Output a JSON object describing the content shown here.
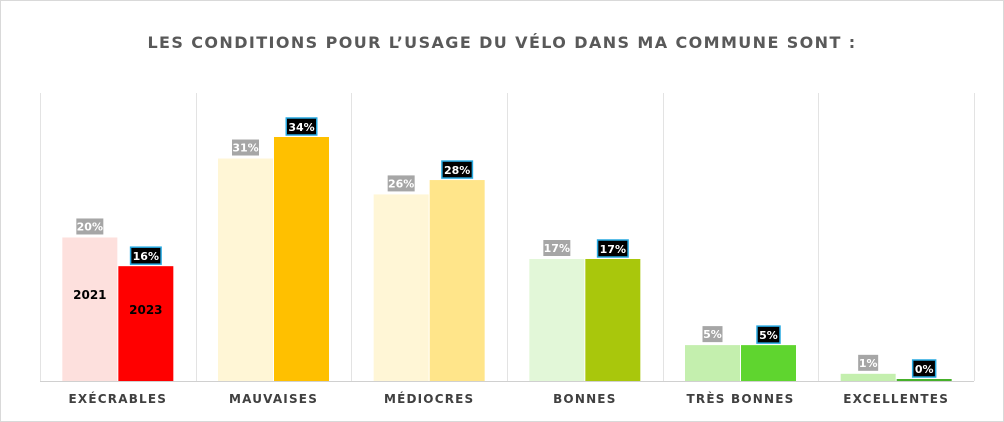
{
  "chart_data": {
    "type": "bar",
    "title": "LES CONDITIONS POUR L’USAGE DU VÉLO DANS MA COMMUNE SONT :",
    "categories": [
      "EXÉCRABLES",
      "MAUVAISES",
      "MÉDIOCRES",
      "BONNES",
      "TRÈS BONNES",
      "EXCELLENTES"
    ],
    "series": [
      {
        "name": "2021",
        "values": [
          20,
          31,
          26,
          17,
          5,
          1
        ],
        "labels": [
          "20%",
          "31%",
          "26%",
          "17%",
          "5%",
          "1%"
        ],
        "colors": [
          "#fde0dd",
          "#fff6d6",
          "#fff6d6",
          "#e2f7d8",
          "#c4efae",
          "#c4efae"
        ]
      },
      {
        "name": "2023",
        "values": [
          16,
          34,
          28,
          17,
          5,
          0
        ],
        "labels": [
          "16%",
          "34%",
          "28%",
          "17%",
          "5%",
          "0%"
        ],
        "colors": [
          "#ff0000",
          "#ffc000",
          "#ffe58a",
          "#a9c70c",
          "#5fd52f",
          "#46b02a"
        ]
      }
    ],
    "ylim": [
      0,
      34
    ],
    "gridlines": "vertical separators between categories",
    "legend": "series names shown inside the first pair of bars"
  }
}
